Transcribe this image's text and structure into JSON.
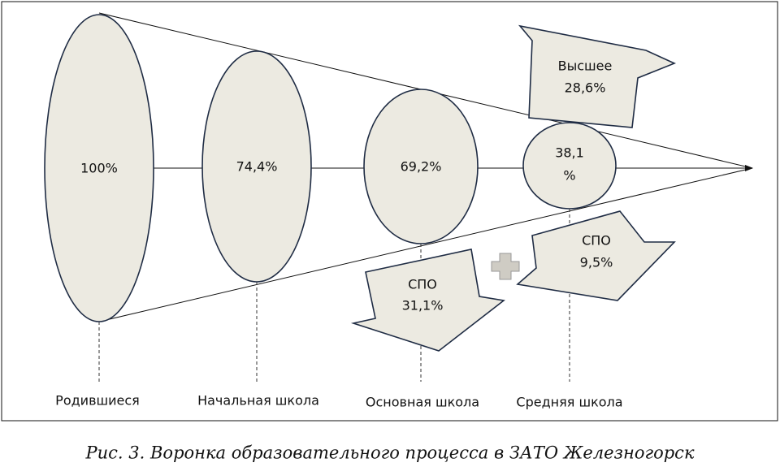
{
  "stages": [
    {
      "value": "100%",
      "label": "Родившиеся"
    },
    {
      "value": "74,4%",
      "label": "Начальная школа"
    },
    {
      "value": "69,2%",
      "label": "Основная школа"
    },
    {
      "value_lines": [
        "38,1",
        "%"
      ],
      "label": "Средняя школа"
    }
  ],
  "arrows": [
    {
      "lines": [
        "Высшее",
        "28,6%"
      ]
    },
    {
      "lines": [
        "СПО",
        "31,1%"
      ]
    },
    {
      "lines": [
        "СПО",
        "9,5%"
      ]
    }
  ],
  "caption": "Рис. 3. Воронка образовательного процесса в  ЗАТО Железногорск"
}
